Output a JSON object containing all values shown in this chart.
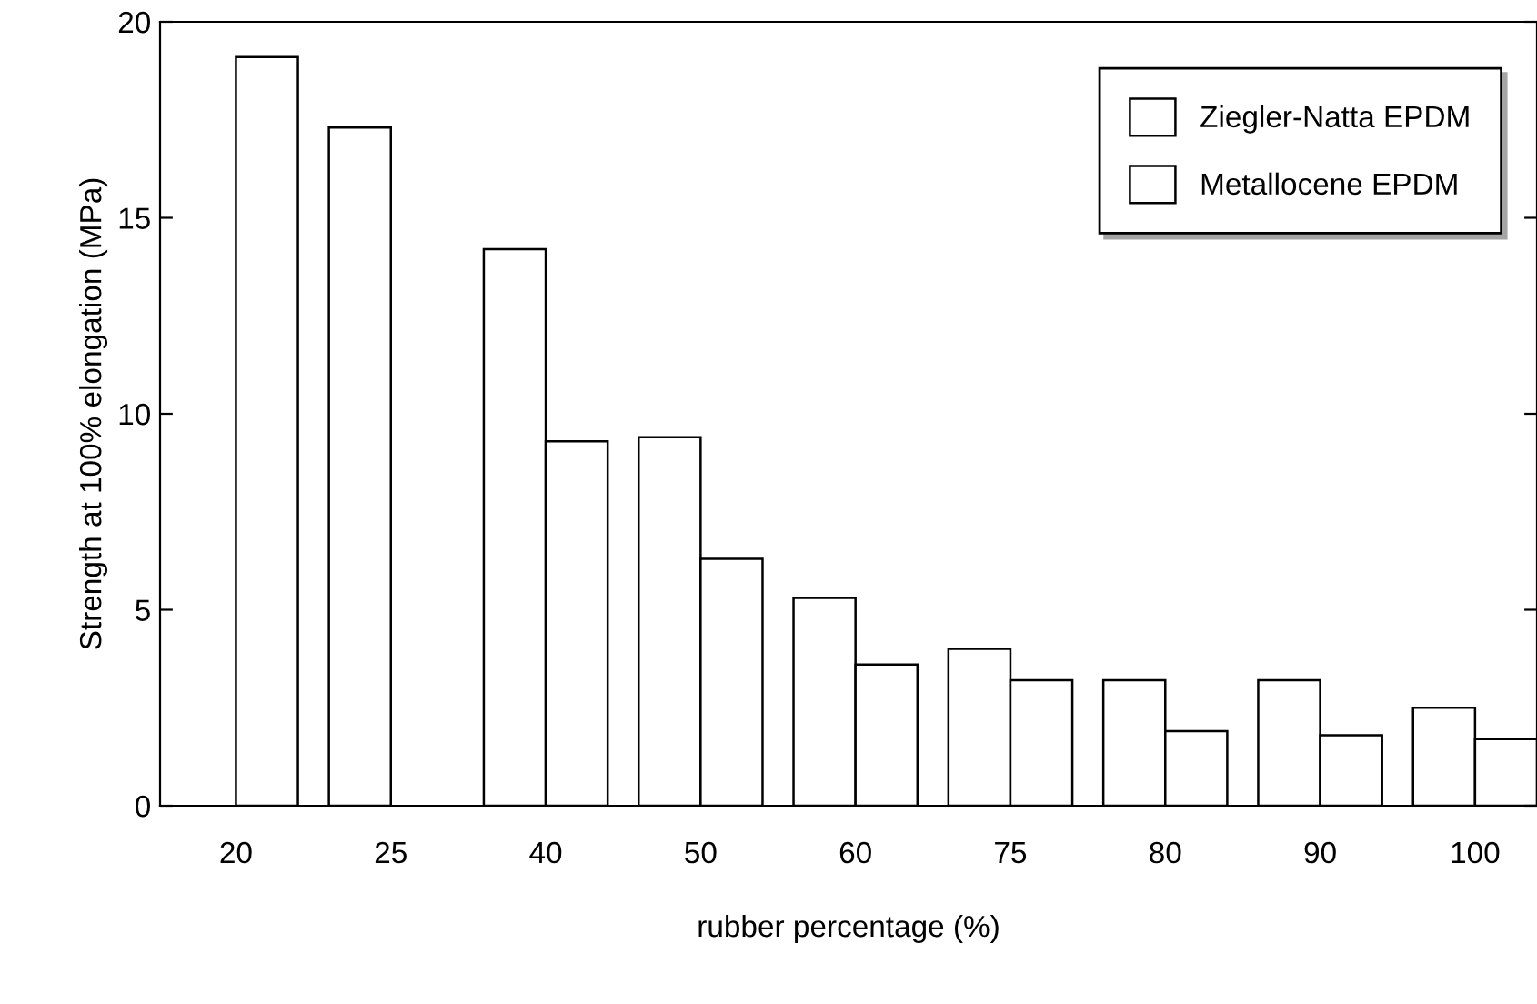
{
  "chart_data": {
    "type": "bar",
    "xlabel": "rubber percentage (%)",
    "ylabel": "Strength at 100% elongation (MPa)",
    "categories": [
      "20",
      "25",
      "40",
      "50",
      "60",
      "75",
      "80",
      "90",
      "100"
    ],
    "series": [
      {
        "name": "Ziegler-Natta EPDM",
        "color": "#ffffff",
        "values": [
          null,
          17.3,
          14.2,
          9.4,
          5.3,
          4.0,
          3.2,
          3.2,
          2.5
        ]
      },
      {
        "name": "Metallocene EPDM",
        "color": "#ffffff",
        "values": [
          19.1,
          null,
          9.3,
          6.3,
          3.6,
          3.2,
          1.9,
          1.8,
          1.7
        ]
      }
    ],
    "ylim": [
      0,
      20
    ],
    "yticks": [
      0,
      5,
      10,
      15,
      20
    ],
    "grid": false,
    "legend": "top right"
  }
}
